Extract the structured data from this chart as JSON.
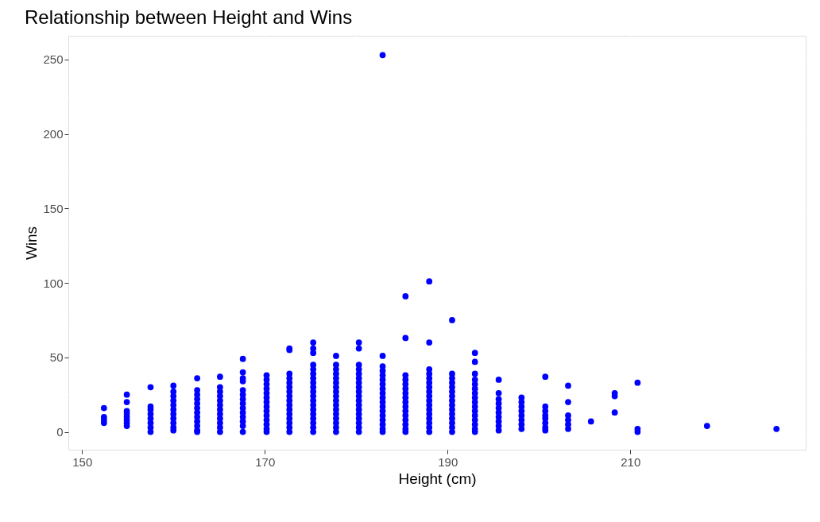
{
  "chart_data": {
    "type": "scatter",
    "title": "Relationship between Height and Wins",
    "xlabel": "Height (cm)",
    "ylabel": "Wins",
    "xlim": [
      148.5,
      229.2
    ],
    "ylim": [
      -12,
      266
    ],
    "xticks": [
      150,
      170,
      190,
      210
    ],
    "yticks": [
      0,
      50,
      100,
      150,
      200,
      250
    ],
    "grid": true,
    "legend": false,
    "marker": "circle",
    "series": [
      {
        "color": "#0000ff",
        "x": [
          152.4,
          152.4,
          152.4,
          152.4,
          154.9,
          154.9,
          154.9,
          154.9,
          154.9,
          154.9,
          154.9,
          154.9,
          157.5,
          157.5,
          157.5,
          157.5,
          157.5,
          157.5,
          157.5,
          157.5,
          160.0,
          160.0,
          160.0,
          160.0,
          160.0,
          160.0,
          160.0,
          160.0,
          160.0,
          160.0,
          160.0,
          162.6,
          162.6,
          162.6,
          162.6,
          162.6,
          162.6,
          162.6,
          162.6,
          162.6,
          162.6,
          162.6,
          162.6,
          165.1,
          165.1,
          165.1,
          165.1,
          165.1,
          165.1,
          165.1,
          165.1,
          165.1,
          165.1,
          165.1,
          165.1,
          167.6,
          167.6,
          167.6,
          167.6,
          167.6,
          167.6,
          167.6,
          167.6,
          167.6,
          167.6,
          167.6,
          167.6,
          167.6,
          167.6,
          170.2,
          170.2,
          170.2,
          170.2,
          170.2,
          170.2,
          170.2,
          170.2,
          170.2,
          170.2,
          170.2,
          170.2,
          170.2,
          170.2,
          172.7,
          172.7,
          172.7,
          172.7,
          172.7,
          172.7,
          172.7,
          172.7,
          172.7,
          172.7,
          172.7,
          172.7,
          172.7,
          172.7,
          172.7,
          172.7,
          175.3,
          175.3,
          175.3,
          175.3,
          175.3,
          175.3,
          175.3,
          175.3,
          175.3,
          175.3,
          175.3,
          175.3,
          175.3,
          175.3,
          175.3,
          175.3,
          175.3,
          175.3,
          175.3,
          177.8,
          177.8,
          177.8,
          177.8,
          177.8,
          177.8,
          177.8,
          177.8,
          177.8,
          177.8,
          177.8,
          177.8,
          177.8,
          177.8,
          177.8,
          177.8,
          177.8,
          180.3,
          180.3,
          180.3,
          180.3,
          180.3,
          180.3,
          180.3,
          180.3,
          180.3,
          180.3,
          180.3,
          180.3,
          180.3,
          180.3,
          180.3,
          180.3,
          180.3,
          180.3,
          182.9,
          182.9,
          182.9,
          182.9,
          182.9,
          182.9,
          182.9,
          182.9,
          182.9,
          182.9,
          182.9,
          182.9,
          182.9,
          182.9,
          182.9,
          182.9,
          182.9,
          182.9,
          185.4,
          185.4,
          185.4,
          185.4,
          185.4,
          185.4,
          185.4,
          185.4,
          185.4,
          185.4,
          185.4,
          185.4,
          185.4,
          185.4,
          185.4,
          185.4,
          188.0,
          188.0,
          188.0,
          188.0,
          188.0,
          188.0,
          188.0,
          188.0,
          188.0,
          188.0,
          188.0,
          188.0,
          188.0,
          188.0,
          188.0,
          188.0,
          188.0,
          190.5,
          190.5,
          190.5,
          190.5,
          190.5,
          190.5,
          190.5,
          190.5,
          190.5,
          190.5,
          190.5,
          190.5,
          190.5,
          190.5,
          190.5,
          193.0,
          193.0,
          193.0,
          193.0,
          193.0,
          193.0,
          193.0,
          193.0,
          193.0,
          193.0,
          193.0,
          193.0,
          193.0,
          193.0,
          193.0,
          193.0,
          195.6,
          195.6,
          195.6,
          195.6,
          195.6,
          195.6,
          195.6,
          195.6,
          195.6,
          195.6,
          198.1,
          198.1,
          198.1,
          198.1,
          198.1,
          198.1,
          198.1,
          198.1,
          200.7,
          200.7,
          200.7,
          200.7,
          200.7,
          200.7,
          200.7,
          200.7,
          203.2,
          203.2,
          203.2,
          203.2,
          203.2,
          203.2,
          205.7,
          208.3,
          208.3,
          208.3,
          210.8,
          210.8,
          210.8,
          218.4,
          226.0
        ],
        "values": [
          16,
          10,
          8,
          6,
          25,
          20,
          14,
          12,
          10,
          8,
          6,
          4,
          30,
          17,
          15,
          12,
          9,
          6,
          3,
          0,
          31,
          27,
          24,
          21,
          18,
          15,
          12,
          9,
          6,
          3,
          1,
          36,
          28,
          25,
          22,
          19,
          16,
          13,
          10,
          7,
          4,
          1,
          0,
          37,
          30,
          27,
          24,
          21,
          18,
          15,
          12,
          9,
          6,
          3,
          0,
          49,
          40,
          36,
          34,
          28,
          25,
          22,
          19,
          16,
          13,
          10,
          7,
          4,
          0,
          38,
          35,
          32,
          29,
          26,
          23,
          20,
          17,
          14,
          11,
          8,
          5,
          2,
          0,
          56,
          55,
          39,
          36,
          33,
          30,
          27,
          24,
          21,
          18,
          15,
          12,
          9,
          6,
          3,
          0,
          60,
          56,
          53,
          45,
          42,
          39,
          36,
          33,
          30,
          27,
          24,
          21,
          18,
          15,
          12,
          9,
          6,
          3,
          0,
          51,
          45,
          42,
          39,
          36,
          33,
          30,
          27,
          24,
          21,
          18,
          15,
          12,
          9,
          6,
          3,
          0,
          60,
          56,
          45,
          42,
          39,
          36,
          33,
          30,
          27,
          24,
          21,
          18,
          15,
          12,
          9,
          6,
          3,
          0,
          253,
          51,
          44,
          41,
          38,
          35,
          32,
          29,
          26,
          23,
          20,
          17,
          14,
          11,
          8,
          5,
          2,
          0,
          91,
          63,
          38,
          35,
          32,
          29,
          26,
          23,
          20,
          17,
          14,
          11,
          8,
          5,
          2,
          0,
          101,
          60,
          42,
          39,
          36,
          33,
          30,
          27,
          24,
          21,
          18,
          15,
          12,
          9,
          6,
          3,
          0,
          75,
          39,
          36,
          33,
          30,
          27,
          24,
          21,
          18,
          15,
          12,
          9,
          6,
          3,
          0,
          53,
          47,
          39,
          35,
          32,
          29,
          26,
          23,
          20,
          17,
          14,
          11,
          8,
          5,
          2,
          0,
          35,
          26,
          22,
          19,
          16,
          13,
          10,
          7,
          4,
          1,
          23,
          20,
          17,
          14,
          11,
          8,
          5,
          2,
          37,
          17,
          14,
          11,
          9,
          6,
          3,
          1,
          31,
          20,
          11,
          8,
          5,
          2,
          7,
          26,
          24,
          13,
          33,
          2,
          0,
          4,
          2
        ]
      }
    ]
  }
}
